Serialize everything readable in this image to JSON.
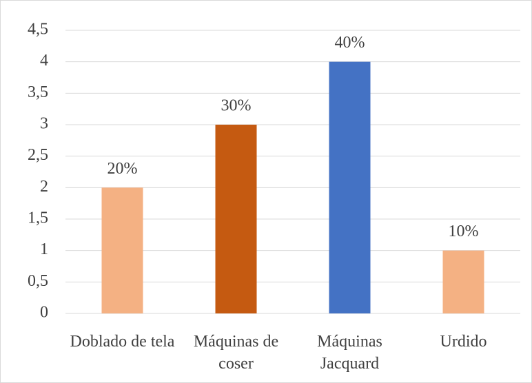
{
  "chart_data": {
    "type": "bar",
    "categories": [
      "Doblado de tela",
      "Máquinas de coser",
      "Máquinas Jacquard",
      "Urdido"
    ],
    "values": [
      2,
      3,
      4,
      1
    ],
    "value_labels": [
      "20%",
      "30%",
      "40%",
      "10%"
    ],
    "colors": [
      "#f4b183",
      "#c55a11",
      "#4472c4",
      "#f4b183"
    ],
    "ylim": [
      0,
      4.5
    ],
    "yticks": [
      0,
      {
        "value": 0.5,
        "label": "0,5"
      },
      1,
      {
        "value": 1.5,
        "label": "1,5"
      },
      2,
      {
        "value": 2.5,
        "label": "2,5"
      },
      3,
      {
        "value": 3.5,
        "label": "3,5"
      },
      4,
      {
        "value": 4.5,
        "label": "4,5"
      }
    ],
    "grid": true
  }
}
